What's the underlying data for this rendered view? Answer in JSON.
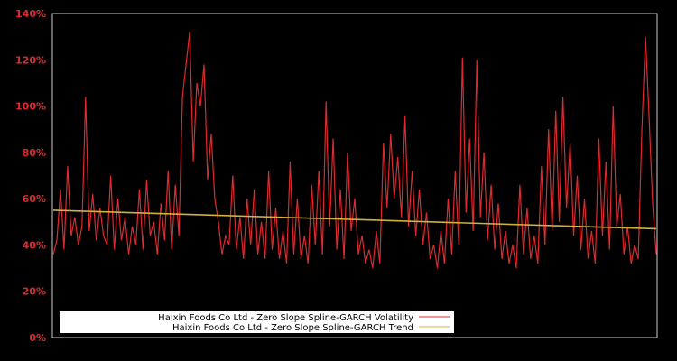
{
  "chart_data": {
    "type": "line",
    "title": "",
    "xlabel": "",
    "ylabel": "",
    "ylim": [
      0,
      140
    ],
    "y_ticks": [
      "0%",
      "20%",
      "40%",
      "60%",
      "80%",
      "100%",
      "120%",
      "140%"
    ],
    "y_tick_values": [
      0,
      20,
      40,
      60,
      80,
      100,
      120,
      140
    ],
    "grid": false,
    "legend_position": "lower left",
    "background": "#000000",
    "axis_color": "#cccccc",
    "tick_label_color": "#dd2a2f",
    "x_index": "sample (0-168), no x tick labels shown",
    "series": [
      {
        "name": "Haixin Foods Co Ltd - Zero Slope Spline-GARCH Volatility",
        "color": "#dd2a2f",
        "values": [
          36,
          42,
          64,
          38,
          74,
          44,
          52,
          40,
          48,
          104,
          46,
          62,
          42,
          56,
          44,
          40,
          70,
          38,
          60,
          42,
          52,
          36,
          48,
          40,
          64,
          38,
          68,
          44,
          50,
          36,
          58,
          42,
          72,
          38,
          66,
          44,
          104,
          118,
          132,
          76,
          110,
          100,
          118,
          68,
          88,
          60,
          50,
          36,
          44,
          40,
          70,
          38,
          52,
          34,
          60,
          40,
          64,
          36,
          50,
          34,
          72,
          38,
          56,
          34,
          46,
          32,
          76,
          36,
          60,
          34,
          44,
          32,
          66,
          40,
          72,
          36,
          102,
          48,
          86,
          38,
          64,
          34,
          80,
          46,
          60,
          36,
          44,
          32,
          38,
          30,
          46,
          32,
          84,
          56,
          88,
          60,
          78,
          52,
          96,
          48,
          72,
          44,
          64,
          40,
          54,
          34,
          40,
          30,
          46,
          32,
          60,
          36,
          72,
          40,
          121,
          54,
          86,
          46,
          120,
          52,
          80,
          42,
          66,
          38,
          58,
          34,
          46,
          32,
          40,
          30,
          66,
          36,
          56,
          34,
          44,
          32,
          74,
          40,
          90,
          46,
          98,
          50,
          104,
          56,
          84,
          44,
          70,
          38,
          60,
          34,
          46,
          32,
          86,
          44,
          76,
          38,
          100,
          48,
          62,
          36,
          48,
          32,
          40,
          34,
          90,
          130,
          96,
          58,
          36
        ]
      },
      {
        "name": "Haixin Foods Co Ltd - Zero Slope Spline-GARCH Trend",
        "color": "#d4b03c",
        "values_start": 55,
        "values_end": 47
      }
    ]
  },
  "legend": {
    "items": [
      {
        "label": "Haixin Foods Co Ltd - Zero Slope Spline-GARCH Volatility",
        "color": "#dd2a2f"
      },
      {
        "label": "Haixin Foods Co Ltd - Zero Slope Spline-GARCH Trend",
        "color": "#d4b03c"
      }
    ]
  }
}
